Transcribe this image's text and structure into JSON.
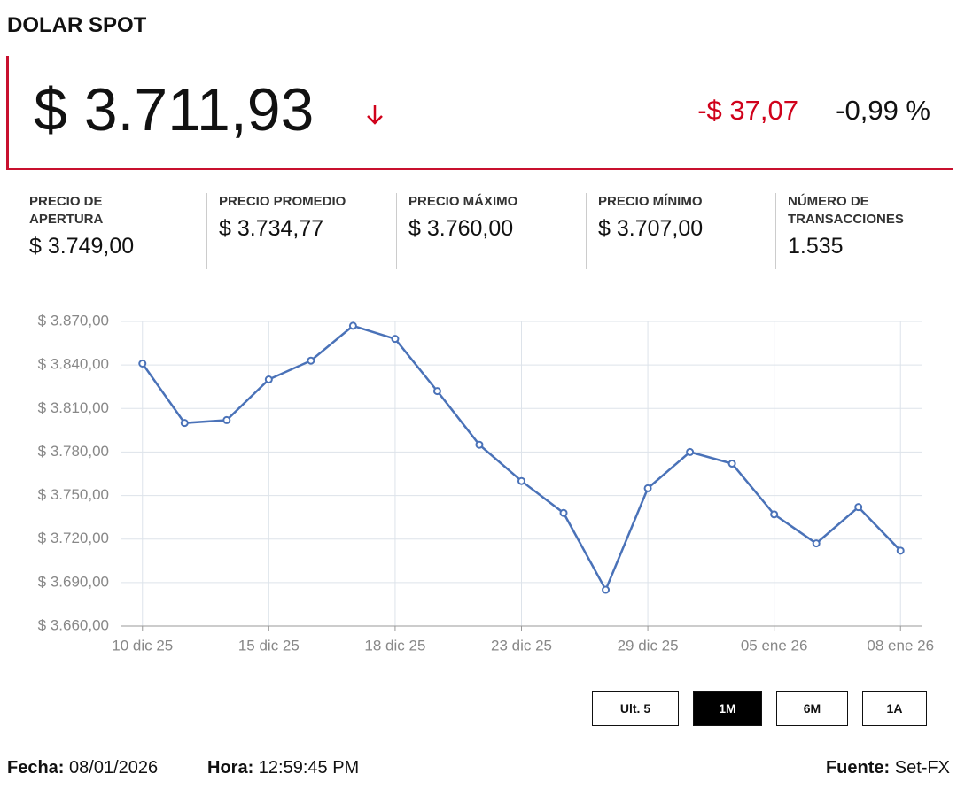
{
  "header": {
    "title": "DOLAR SPOT",
    "price": "$ 3.711,93",
    "change": "-$ 37,07",
    "change_pct": "-0,99 %"
  },
  "stats": [
    {
      "label": "PRECIO DE APERTURA",
      "value": "$ 3.749,00"
    },
    {
      "label": "PRECIO PROMEDIO",
      "value": "$ 3.734,77"
    },
    {
      "label": "PRECIO MÁXIMO",
      "value": "$ 3.760,00"
    },
    {
      "label": "PRECIO MÍNIMO",
      "value": "$ 3.707,00"
    },
    {
      "label": "NÚMERO DE TRANSACCIONES",
      "value": "1.535"
    }
  ],
  "chart_data": {
    "type": "line",
    "categories": [
      "10 dic 25",
      null,
      null,
      "15 dic 25",
      null,
      null,
      "18 dic 25",
      null,
      null,
      "23 dic 25",
      null,
      null,
      "29 dic 25",
      null,
      null,
      "05 ene 26",
      null,
      null,
      "08 ene 26"
    ],
    "series": [
      {
        "color": "#4a72b8",
        "values": [
          3841,
          3800,
          3802,
          3830,
          3843,
          3867,
          3858,
          3822,
          3785,
          3760,
          3738,
          3685,
          3755,
          3780,
          3772,
          3737,
          3717,
          3742,
          3712
        ]
      }
    ],
    "ylim": [
      3660,
      3870
    ],
    "yticks": [
      {
        "value": 3660,
        "label": "$ 3.660,00"
      },
      {
        "value": 3690,
        "label": "$ 3.690,00"
      },
      {
        "value": 3720,
        "label": "$ 3.720,00"
      },
      {
        "value": 3750,
        "label": "$ 3.750,00"
      },
      {
        "value": 3780,
        "label": "$ 3.780,00"
      },
      {
        "value": 3810,
        "label": "$ 3.810,00"
      },
      {
        "value": 3840,
        "label": "$ 3.840,00"
      },
      {
        "value": 3870,
        "label": "$ 3.870,00"
      }
    ],
    "grid": true
  },
  "buttons": [
    {
      "label": "Ult. 5",
      "active": false
    },
    {
      "label": "1M",
      "active": true
    },
    {
      "label": "6M",
      "active": false
    },
    {
      "label": "1A",
      "active": false
    }
  ],
  "footer": {
    "date_label": "Fecha:",
    "date": "08/01/2026",
    "time_label": "Hora:",
    "time": "12:59:45 PM",
    "source_label": "Fuente:",
    "source": "Set-FX"
  }
}
